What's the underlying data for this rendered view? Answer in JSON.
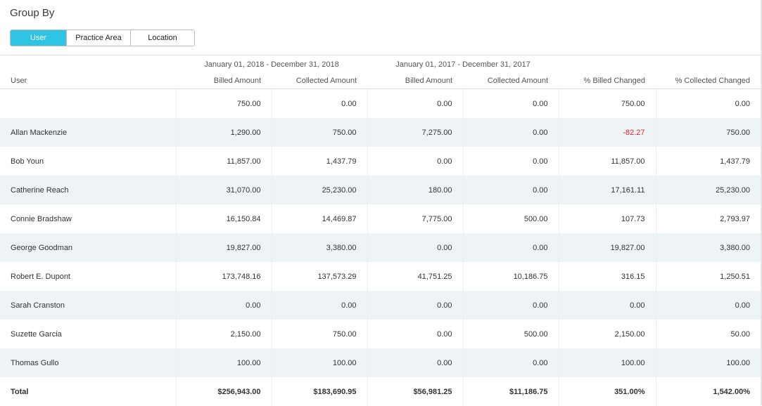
{
  "title": "Group By",
  "group_by": {
    "options": [
      {
        "label": "User",
        "active": true
      },
      {
        "label": "Practice Area",
        "active": false
      },
      {
        "label": "Location",
        "active": false
      }
    ]
  },
  "periods": {
    "current": "January 01, 2018 - December 31, 2018",
    "previous": "January 01, 2017 - December 31, 2017"
  },
  "table": {
    "columns": [
      "User",
      "Billed Amount",
      "Collected Amount",
      "Billed Amount",
      "Collected Amount",
      "% Billed Changed",
      "% Collected Changed"
    ],
    "rows": [
      {
        "name": "",
        "cells": [
          "750.00",
          "0.00",
          "0.00",
          "0.00",
          "750.00",
          "0.00"
        ]
      },
      {
        "name": "Allan Mackenzie",
        "cells": [
          "1,290.00",
          "750.00",
          "7,275.00",
          "0.00",
          "-82.27",
          "750.00"
        ]
      },
      {
        "name": "Bob Youn",
        "cells": [
          "11,857.00",
          "1,437.79",
          "0.00",
          "0.00",
          "11,857.00",
          "1,437.79"
        ]
      },
      {
        "name": "Catherine Reach",
        "cells": [
          "31,070.00",
          "25,230.00",
          "180.00",
          "0.00",
          "17,161.11",
          "25,230.00"
        ]
      },
      {
        "name": "Connie Bradshaw",
        "cells": [
          "16,150.84",
          "14,469.87",
          "7,775.00",
          "500.00",
          "107.73",
          "2,793.97"
        ]
      },
      {
        "name": "George Goodman",
        "cells": [
          "19,827.00",
          "3,380.00",
          "0.00",
          "0.00",
          "19,827.00",
          "3,380.00"
        ]
      },
      {
        "name": "Robert E. Dupont",
        "cells": [
          "173,748.16",
          "137,573.29",
          "41,751.25",
          "10,186.75",
          "316.15",
          "1,250.51"
        ]
      },
      {
        "name": "Sarah Cranston",
        "cells": [
          "0.00",
          "0.00",
          "0.00",
          "0.00",
          "0.00",
          "0.00"
        ]
      },
      {
        "name": "Suzette Garcia",
        "cells": [
          "2,150.00",
          "750.00",
          "0.00",
          "500.00",
          "2,150.00",
          "50.00"
        ]
      },
      {
        "name": "Thomas Gullo",
        "cells": [
          "100.00",
          "100.00",
          "0.00",
          "0.00",
          "100.00",
          "100.00"
        ]
      }
    ],
    "total": {
      "name": "Total",
      "cells": [
        "$256,943.00",
        "$183,690.95",
        "$56,981.25",
        "$11,186.75",
        "351.00%",
        "1,542.00%"
      ]
    }
  },
  "colors": {
    "accent": "#2ec4e4",
    "negative": "#e0202b",
    "row_alt": "#eef3f6"
  }
}
